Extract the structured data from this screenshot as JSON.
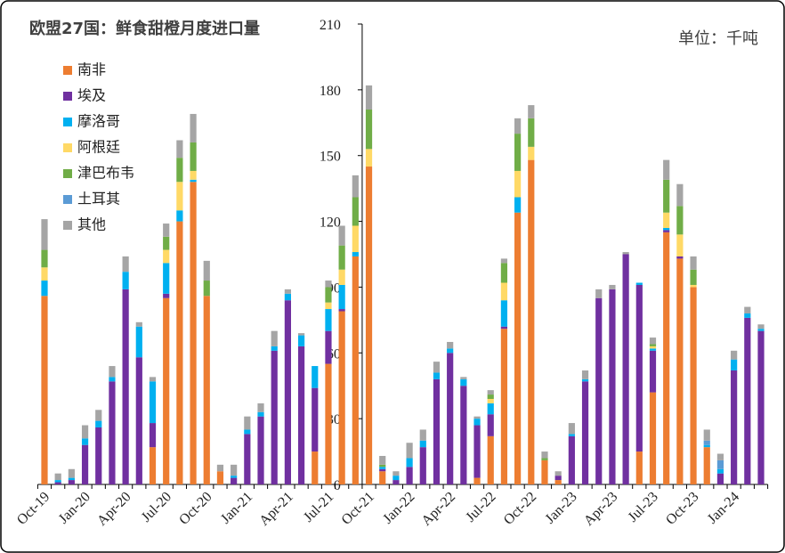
{
  "chart_data": {
    "type": "stacked_bar",
    "title": "欧盟27国：鲜食甜橙月度进口量",
    "unit_label": "单位：千吨",
    "categories": [
      "Oct-19",
      null,
      null,
      "Jan-20",
      null,
      null,
      "Apr-20",
      null,
      null,
      "Jul-20",
      null,
      null,
      "Oct-20",
      null,
      null,
      "Jan-21",
      null,
      null,
      "Apr-21",
      null,
      null,
      "Jul-21",
      null,
      null,
      "Oct-21",
      null,
      null,
      "Jan-22",
      null,
      null,
      "Apr-22",
      null,
      null,
      "Jul-22",
      null,
      null,
      "Oct-22",
      null,
      null,
      "Jan-23",
      null,
      null,
      "Apr-23",
      null,
      null,
      "Jul-23",
      null,
      null,
      "Oct-23",
      null,
      null,
      "Jan-24",
      null,
      null
    ],
    "series": [
      {
        "name": "南非",
        "color": "#ED7D31",
        "values": [
          86,
          0,
          0,
          0,
          0,
          0,
          0,
          0,
          17,
          85,
          120,
          138,
          86,
          6,
          0,
          0,
          0,
          0,
          0,
          0,
          15,
          55,
          79,
          104,
          145,
          6,
          0,
          0,
          0,
          0,
          0,
          0,
          3,
          22,
          71,
          124,
          148,
          11,
          2,
          0,
          0,
          0,
          0,
          0,
          15,
          42,
          115,
          103,
          90,
          17,
          0,
          0,
          0,
          0
        ]
      },
      {
        "name": "埃及",
        "color": "#7030A0",
        "values": [
          0,
          1,
          2,
          18,
          26,
          47,
          89,
          58,
          11,
          2,
          0,
          0,
          0,
          0,
          3,
          23,
          31,
          61,
          84,
          63,
          29,
          15,
          1,
          0,
          0,
          1,
          2,
          8,
          17,
          48,
          60,
          45,
          24,
          10,
          1,
          0,
          0,
          0,
          2,
          22,
          47,
          85,
          89,
          105,
          76,
          19,
          1,
          1,
          0,
          0,
          5,
          52,
          76,
          70
        ]
      },
      {
        "name": "摩洛哥",
        "color": "#00B0F0",
        "values": [
          7,
          1,
          1,
          3,
          3,
          2,
          8,
          14,
          19,
          14,
          5,
          1,
          0,
          0,
          1,
          2,
          2,
          2,
          3,
          5,
          10,
          10,
          11,
          2,
          0,
          1,
          2,
          4,
          3,
          3,
          2,
          3,
          3,
          5,
          12,
          7,
          0,
          0,
          0,
          1,
          1,
          0,
          0,
          0,
          1,
          1,
          1,
          0,
          0,
          1,
          2,
          5,
          2,
          1
        ]
      },
      {
        "name": "阿根廷",
        "color": "#FFD966",
        "values": [
          6,
          0,
          0,
          0,
          0,
          0,
          0,
          0,
          0,
          6,
          13,
          4,
          0,
          0,
          0,
          0,
          0,
          0,
          0,
          0,
          0,
          3,
          7,
          12,
          8,
          0,
          0,
          0,
          0,
          0,
          0,
          0,
          0,
          2,
          8,
          12,
          6,
          0,
          0,
          0,
          0,
          0,
          0,
          0,
          0,
          1,
          7,
          10,
          1,
          0,
          0,
          0,
          0,
          0
        ]
      },
      {
        "name": "津巴布韦",
        "color": "#70AD47",
        "values": [
          8,
          0,
          0,
          0,
          0,
          0,
          0,
          0,
          0,
          6,
          11,
          13,
          7,
          0,
          0,
          0,
          0,
          0,
          0,
          0,
          0,
          7,
          11,
          13,
          18,
          1,
          0,
          0,
          0,
          0,
          0,
          0,
          0,
          2,
          9,
          17,
          13,
          1,
          0,
          0,
          0,
          0,
          0,
          0,
          0,
          1,
          15,
          13,
          7,
          0,
          0,
          0,
          0,
          0
        ]
      },
      {
        "name": "土耳其",
        "color": "#5B9BD5",
        "values": [
          0,
          0,
          0,
          0,
          0,
          0,
          0,
          0,
          0,
          0,
          0,
          0,
          0,
          0,
          0,
          0,
          0,
          0,
          0,
          0,
          0,
          0,
          0,
          0,
          0,
          0,
          0,
          0,
          0,
          0,
          0,
          0,
          0,
          0,
          0,
          0,
          0,
          0,
          0,
          0,
          0,
          0,
          0,
          0,
          0,
          0,
          0,
          0,
          0,
          2,
          4,
          0,
          0,
          0
        ]
      },
      {
        "name": "其他",
        "color": "#A5A5A5",
        "values": [
          14,
          3,
          4,
          6,
          5,
          5,
          7,
          2,
          2,
          6,
          8,
          13,
          9,
          3,
          5,
          6,
          4,
          7,
          2,
          1,
          0,
          3,
          9,
          10,
          11,
          4,
          2,
          7,
          5,
          5,
          3,
          1,
          1,
          2,
          2,
          7,
          6,
          3,
          2,
          5,
          4,
          4,
          2,
          1,
          0,
          3,
          9,
          10,
          6,
          5,
          3,
          4,
          3,
          2
        ]
      }
    ],
    "ylim": [
      0,
      210
    ],
    "yticks": [
      0,
      30,
      60,
      90,
      120,
      150,
      180,
      210
    ]
  }
}
